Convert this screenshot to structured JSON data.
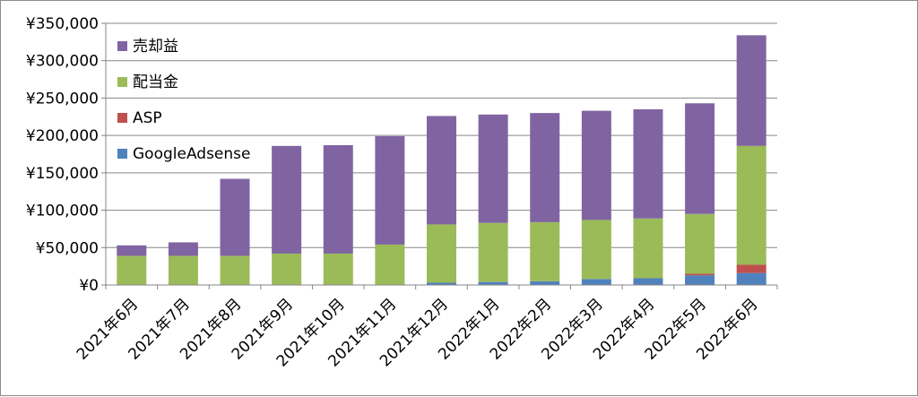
{
  "chart_data": {
    "type": "bar",
    "stacked": true,
    "title": "",
    "xlabel": "",
    "ylabel": "",
    "ylim": [
      0,
      350000
    ],
    "ytick_values": [
      0,
      50000,
      100000,
      150000,
      200000,
      250000,
      300000,
      350000
    ],
    "ytick_labels": [
      "¥0",
      "¥50,000",
      "¥100,000",
      "¥150,000",
      "¥200,000",
      "¥250,000",
      "¥300,000",
      "¥350,000"
    ],
    "grid": true,
    "legend_position": "top-left",
    "categories": [
      "2021年6月",
      "2021年7月",
      "2021年8月",
      "2021年9月",
      "2021年10月",
      "2021年11月",
      "2021年12月",
      "2022年1月",
      "2022年2月",
      "2022年3月",
      "2022年4月",
      "2022年5月",
      "2022年6月"
    ],
    "series": [
      {
        "name": "GoogleAdsense",
        "color": "#4f81bd",
        "values": [
          0,
          0,
          0,
          0,
          0,
          0,
          3000,
          4000,
          5000,
          8000,
          9000,
          13000,
          16000
        ]
      },
      {
        "name": "ASP",
        "color": "#c0504d",
        "values": [
          0,
          0,
          0,
          0,
          0,
          0,
          0,
          0,
          0,
          0,
          0,
          2000,
          11000
        ]
      },
      {
        "name": "配当金",
        "color": "#9bbb59",
        "values": [
          39000,
          39000,
          39000,
          42000,
          42000,
          54000,
          78000,
          79000,
          79000,
          79000,
          80000,
          80000,
          159000
        ]
      },
      {
        "name": "売却益",
        "color": "#8064a2",
        "values": [
          14000,
          18000,
          103000,
          144000,
          145000,
          145000,
          145000,
          145000,
          146000,
          146000,
          146000,
          148000,
          148000
        ]
      }
    ],
    "legend_order": [
      "売却益",
      "配当金",
      "ASP",
      "GoogleAdsense"
    ]
  }
}
